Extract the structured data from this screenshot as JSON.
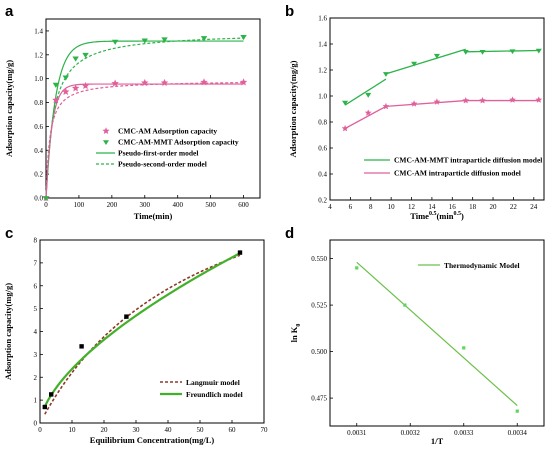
{
  "chart_data": [
    {
      "panel": "a",
      "type": "scatter",
      "xlabel": "Time(min)",
      "ylabel": "Adsorption capacity(mg/g)",
      "xlim": [
        0,
        650
      ],
      "ylim": [
        0,
        1.5
      ],
      "xticks": [
        0,
        100,
        200,
        300,
        400,
        500,
        600
      ],
      "yticks": [
        0.0,
        0.2,
        0.4,
        0.6,
        0.8,
        1.0,
        1.2,
        1.4
      ],
      "legend_position": "lower-right",
      "series": [
        {
          "name": "CMC-AM Adsorption capacity",
          "kind": "points",
          "marker": "star",
          "color": "#e0609b",
          "x": [
            0,
            30,
            60,
            90,
            120,
            210,
            300,
            360,
            480,
            600
          ],
          "y": [
            0.0,
            0.82,
            0.89,
            0.92,
            0.94,
            0.96,
            0.965,
            0.965,
            0.97,
            0.97
          ]
        },
        {
          "name": "CMC-AM-MMT Adsorption capacity",
          "kind": "points",
          "marker": "triangle-down",
          "color": "#2db34a",
          "x": [
            0,
            30,
            60,
            90,
            120,
            210,
            300,
            360,
            480,
            600
          ],
          "y": [
            0.0,
            0.95,
            1.01,
            1.17,
            1.2,
            1.31,
            1.32,
            1.33,
            1.34,
            1.35
          ]
        },
        {
          "name": "Pseudo-first-order model",
          "kind": "pfo",
          "color": "#2db34a",
          "curves": [
            {
              "qe": 1.315,
              "k": 0.035,
              "color": "#2db34a"
            },
            {
              "qe": 0.955,
              "k": 0.055,
              "color": "#e0609b"
            }
          ]
        },
        {
          "name": "Pseudo-second-order model",
          "kind": "pso",
          "color": "#2db34a",
          "curves": [
            {
              "qe": 1.39,
              "k": 0.032,
              "color": "#2db34a"
            },
            {
              "qe": 0.985,
              "k": 0.09,
              "color": "#e0609b"
            }
          ]
        }
      ]
    },
    {
      "panel": "b",
      "type": "line",
      "xlabel": "Time",
      "xlabel_sup": "0.5",
      "xlabel_unit": "(min",
      "xlabel_unit_sup": "0.5",
      "xlabel_close": ")",
      "ylabel": "Adsorption capacity(mg/g)",
      "xlim": [
        4,
        25
      ],
      "ylim": [
        0.2,
        1.6
      ],
      "xticks": [
        4,
        6,
        8,
        10,
        12,
        14,
        16,
        18,
        20,
        22,
        24
      ],
      "yticks": [
        0.2,
        0.4,
        0.6,
        0.8,
        1.0,
        1.2,
        1.4,
        1.6
      ],
      "legend_position": "lower-right",
      "series": [
        {
          "name": "CMC-AM-MMT intraparticle diffusion model",
          "color": "#2db34a",
          "marker": "triangle-down",
          "points_x": [
            5.48,
            7.75,
            9.49,
            12.25,
            14.49,
            17.32,
            18.97,
            21.91,
            24.49
          ],
          "points_y": [
            0.95,
            1.01,
            1.17,
            1.25,
            1.31,
            1.34,
            1.34,
            1.345,
            1.35
          ],
          "fit_x": [
            5.48,
            9.49,
            9.49,
            17.32,
            17.32,
            24.49
          ],
          "fit_y": [
            0.93,
            1.13,
            1.17,
            1.36,
            1.34,
            1.35
          ]
        },
        {
          "name": "CMC-AM intraparticle diffusion model",
          "color": "#e0609b",
          "marker": "star",
          "points_x": [
            5.48,
            7.75,
            9.49,
            12.25,
            14.49,
            17.32,
            18.97,
            21.91,
            24.49
          ],
          "points_y": [
            0.75,
            0.87,
            0.92,
            0.94,
            0.955,
            0.965,
            0.965,
            0.97,
            0.97
          ],
          "fit_x": [
            5.48,
            9.49,
            9.49,
            17.32,
            17.32,
            24.49
          ],
          "fit_y": [
            0.75,
            0.92,
            0.92,
            0.965,
            0.965,
            0.965
          ]
        }
      ]
    },
    {
      "panel": "c",
      "type": "scatter",
      "xlabel": "Equilibrium Concentration(mg/L)",
      "ylabel": "Adsorption capacity(mg/g)",
      "xlim": [
        0,
        70
      ],
      "ylim": [
        0,
        8
      ],
      "xticks": [
        0,
        10,
        20,
        30,
        40,
        50,
        60,
        70
      ],
      "yticks": [
        0,
        1,
        2,
        3,
        4,
        5,
        6,
        7,
        8
      ],
      "legend_position": "lower-right",
      "points": {
        "x": [
          1.5,
          3.5,
          13,
          27,
          62.5
        ],
        "y": [
          0.7,
          1.25,
          3.35,
          4.65,
          7.45
        ],
        "color": "#000000"
      },
      "series": [
        {
          "name": "Langmuir model",
          "color": "#8b3a2a",
          "dash": true,
          "model": "langmuir",
          "qm": 13.2,
          "kl": 0.02
        },
        {
          "name": "Freundlich model",
          "color": "#43b02a",
          "dash": false,
          "model": "freundlich",
          "kf": 0.56,
          "n": 1.6
        }
      ]
    },
    {
      "panel": "d",
      "type": "scatter",
      "xlabel": "1/T",
      "ylabel": "ln K",
      "ylabel_sub": "0",
      "xlim": [
        0.00305,
        0.00345
      ],
      "ylim": [
        0.46,
        0.56
      ],
      "xticks": [
        0.0031,
        0.0032,
        0.0033,
        0.0034
      ],
      "yticks": [
        0.475,
        0.5,
        0.525,
        0.55
      ],
      "xtick_labels": [
        "0.0031",
        "0.0032",
        "0.0033",
        "0.0034"
      ],
      "ytick_labels": [
        "0.475",
        "0.500",
        "0.525",
        "0.550"
      ],
      "legend_position": "top-right",
      "points": {
        "x": [
          0.0031,
          0.00319,
          0.0033,
          0.0034
        ],
        "y": [
          0.545,
          0.525,
          0.502,
          0.468
        ],
        "color": "#5cd65c"
      },
      "series": [
        {
          "name": "Thermodynamic Model",
          "color": "#6cc04a",
          "fit_x": [
            0.0031,
            0.0034
          ],
          "fit_y": [
            0.548,
            0.471
          ]
        }
      ]
    }
  ]
}
